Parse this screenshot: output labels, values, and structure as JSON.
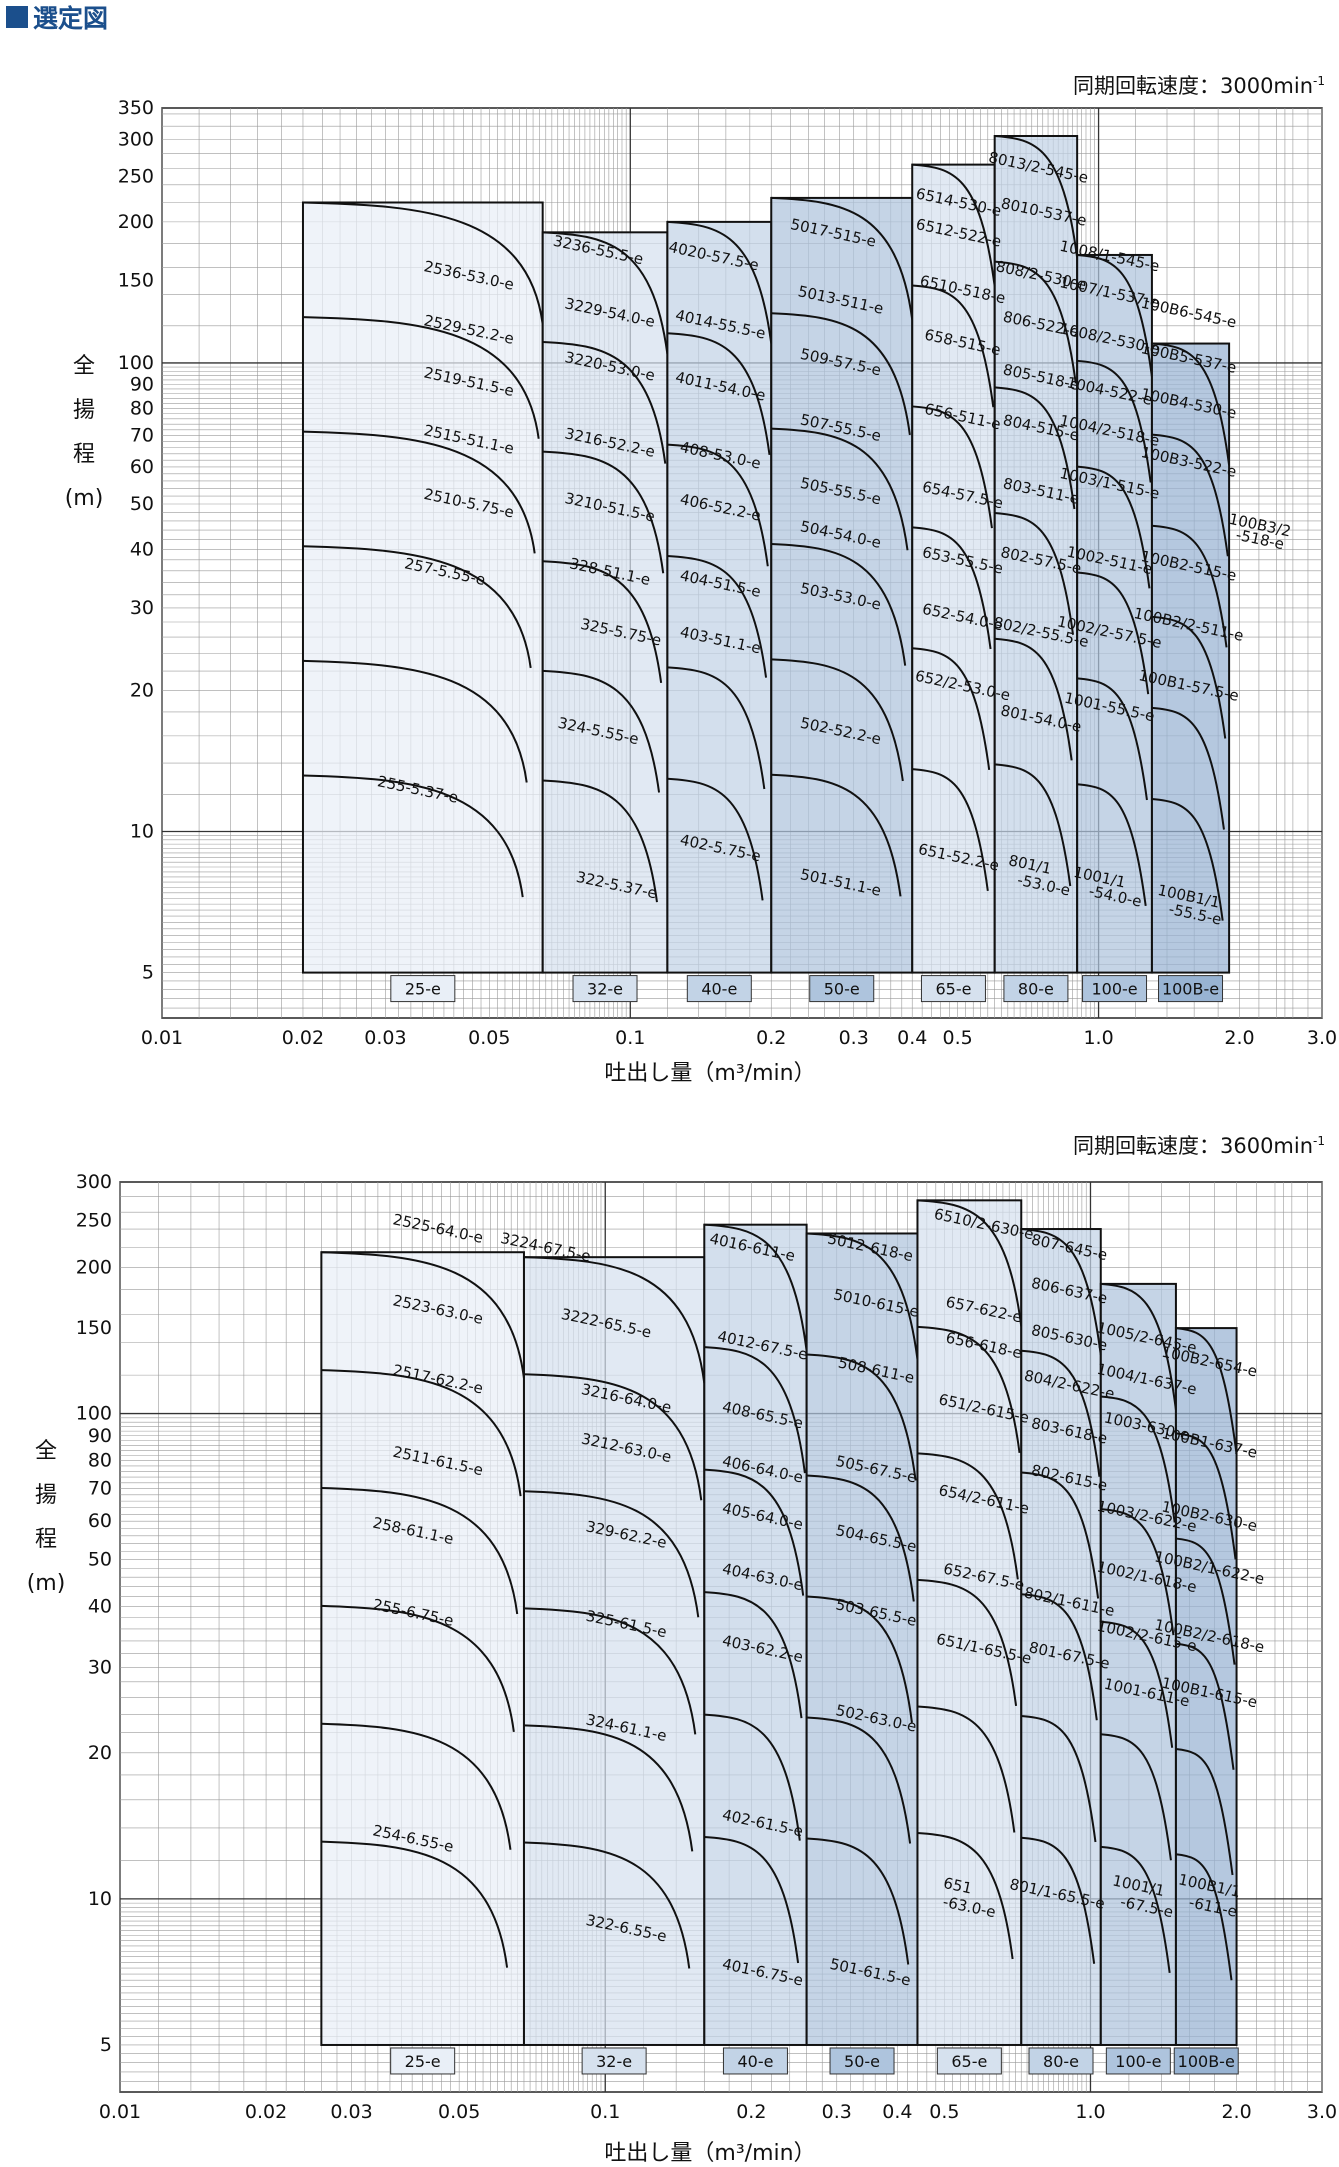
{
  "page_title": "選定図",
  "chart_data": [
    {
      "type": "area",
      "speed": "同期回転速度：3000min",
      "speed_exp": "-1",
      "ylabel": [
        "全",
        "揚",
        "程",
        "(m)"
      ],
      "xlabel": "吐出し量（m³/min）",
      "xscale": "log",
      "yscale": "log",
      "xlim": [
        0.01,
        3.0
      ],
      "ylim": [
        4,
        350
      ],
      "grid": true,
      "x_ticks": [
        0.01,
        0.02,
        0.03,
        0.05,
        0.1,
        0.2,
        0.3,
        0.4,
        0.5,
        1.0,
        2.0,
        3.0
      ],
      "x_tick_labels": [
        "0.01",
        "0.02",
        "0.03",
        "0.05",
        "0.1",
        "0.2",
        "0.3",
        "0.4",
        "0.5",
        "1.0",
        "2.0",
        "3.0"
      ],
      "y_ticks": [
        5,
        10,
        20,
        30,
        40,
        50,
        60,
        70,
        80,
        90,
        100,
        150,
        200,
        250,
        300,
        350
      ],
      "y_tick_labels": [
        "5",
        "10",
        "20",
        "30",
        "40",
        "50",
        "60",
        "70",
        "80",
        "90",
        "100",
        "150",
        "200",
        "250",
        "300",
        "350"
      ],
      "bands": [
        {
          "label": "25-e",
          "xmin": 0.02,
          "xmax": 0.065,
          "top": 220,
          "color": "#e9eff7"
        },
        {
          "label": "32-e",
          "xmin": 0.065,
          "xmax": 0.12,
          "top": 190,
          "color": "#d6e1ee"
        },
        {
          "label": "40-e",
          "xmin": 0.12,
          "xmax": 0.2,
          "top": 200,
          "color": "#c2d3e6"
        },
        {
          "label": "50-e",
          "xmin": 0.2,
          "xmax": 0.4,
          "top": 225,
          "color": "#aec4dd"
        },
        {
          "label": "65-e",
          "xmin": 0.4,
          "xmax": 0.6,
          "top": 265,
          "color": "#d6e1ee"
        },
        {
          "label": "80-e",
          "xmin": 0.6,
          "xmax": 0.9,
          "top": 305,
          "color": "#c2d3e6"
        },
        {
          "label": "100-e",
          "xmin": 0.9,
          "xmax": 1.3,
          "top": 170,
          "color": "#aec4dd"
        },
        {
          "label": "100B-e",
          "xmin": 1.3,
          "xmax": 1.9,
          "top": 110,
          "color": "#98b3d2"
        }
      ],
      "model_labels": [
        {
          "text": "2536-53.0-e",
          "x": 0.045,
          "y": 150
        },
        {
          "text": "2529-52.2-e",
          "x": 0.045,
          "y": 115
        },
        {
          "text": "2519-51.5-e",
          "x": 0.045,
          "y": 89
        },
        {
          "text": "2515-51.1-e",
          "x": 0.045,
          "y": 67
        },
        {
          "text": "2510-5.75-e",
          "x": 0.045,
          "y": 49
        },
        {
          "text": "257-5.55-e",
          "x": 0.04,
          "y": 35
        },
        {
          "text": "255-5.37-e",
          "x": 0.035,
          "y": 12
        },
        {
          "text": "3236-55.5-e",
          "x": 0.085,
          "y": 170
        },
        {
          "text": "3229-54.0-e",
          "x": 0.09,
          "y": 125
        },
        {
          "text": "3220-53.0-e",
          "x": 0.09,
          "y": 96
        },
        {
          "text": "3216-52.2-e",
          "x": 0.09,
          "y": 66
        },
        {
          "text": "3210-51.5-e",
          "x": 0.09,
          "y": 48
        },
        {
          "text": "328-51.1-e",
          "x": 0.09,
          "y": 35
        },
        {
          "text": "325-5.75-e",
          "x": 0.095,
          "y": 26
        },
        {
          "text": "324-5.55-e",
          "x": 0.085,
          "y": 16
        },
        {
          "text": "322-5.37-e",
          "x": 0.093,
          "y": 7.5
        },
        {
          "text": "4020-57.5-e",
          "x": 0.15,
          "y": 165
        },
        {
          "text": "4014-55.5-e",
          "x": 0.155,
          "y": 118
        },
        {
          "text": "4011-54.0-e",
          "x": 0.155,
          "y": 87
        },
        {
          "text": "408-53.0-e",
          "x": 0.155,
          "y": 62
        },
        {
          "text": "406-52.2-e",
          "x": 0.155,
          "y": 48
        },
        {
          "text": "404-51.5-e",
          "x": 0.155,
          "y": 33
        },
        {
          "text": "403-51.1-e",
          "x": 0.155,
          "y": 25
        },
        {
          "text": "402-5.75-e",
          "x": 0.155,
          "y": 9
        },
        {
          "text": "5017-515-e",
          "x": 0.27,
          "y": 185
        },
        {
          "text": "5013-511-e",
          "x": 0.28,
          "y": 133
        },
        {
          "text": "509-57.5-e",
          "x": 0.28,
          "y": 98
        },
        {
          "text": "507-55.5-e",
          "x": 0.28,
          "y": 71
        },
        {
          "text": "505-55.5-e",
          "x": 0.28,
          "y": 52
        },
        {
          "text": "504-54.0-e",
          "x": 0.28,
          "y": 42
        },
        {
          "text": "503-53.0-e",
          "x": 0.28,
          "y": 31
        },
        {
          "text": "502-52.2-e",
          "x": 0.28,
          "y": 16
        },
        {
          "text": "501-51.1-e",
          "x": 0.28,
          "y": 7.6
        },
        {
          "text": "6514-530-e",
          "x": 0.5,
          "y": 215
        },
        {
          "text": "6512-522-e",
          "x": 0.5,
          "y": 185
        },
        {
          "text": "6510-518-e",
          "x": 0.51,
          "y": 140
        },
        {
          "text": "658-515-e",
          "x": 0.51,
          "y": 108
        },
        {
          "text": "656-511-e",
          "x": 0.51,
          "y": 75
        },
        {
          "text": "654-57.5-e",
          "x": 0.51,
          "y": 51
        },
        {
          "text": "653-55.5-e",
          "x": 0.51,
          "y": 37
        },
        {
          "text": "652-54.0-e",
          "x": 0.51,
          "y": 28
        },
        {
          "text": "652/2-53.0-e",
          "x": 0.51,
          "y": 20
        },
        {
          "text": "651-52.2-e",
          "x": 0.5,
          "y": 8.6
        },
        {
          "text": "8013/2-545-e",
          "x": 0.74,
          "y": 255
        },
        {
          "text": "8010-537-e",
          "x": 0.76,
          "y": 205
        },
        {
          "text": "808/2-530-e",
          "x": 0.75,
          "y": 150
        },
        {
          "text": "806-522-e",
          "x": 0.75,
          "y": 118
        },
        {
          "text": "805-518-e",
          "x": 0.75,
          "y": 91
        },
        {
          "text": "804-515-e",
          "x": 0.75,
          "y": 71
        },
        {
          "text": "803-511-e",
          "x": 0.75,
          "y": 52
        },
        {
          "text": "802-57.5-e",
          "x": 0.75,
          "y": 37
        },
        {
          "text": "802/2-55.5-e",
          "x": 0.75,
          "y": 26
        },
        {
          "text": "801-54.0-e",
          "x": 0.75,
          "y": 17
        },
        {
          "text": "801/1",
          "x": 0.71,
          "y": 8.3
        },
        {
          "text": "-53.0-e",
          "x": 0.76,
          "y": 7.5
        },
        {
          "text": "1008/1-545-e",
          "x": 1.05,
          "y": 165
        },
        {
          "text": "1007/1-537-e",
          "x": 1.05,
          "y": 138
        },
        {
          "text": "1008/2-530-e",
          "x": 1.05,
          "y": 110
        },
        {
          "text": "1004-522-e",
          "x": 1.05,
          "y": 85
        },
        {
          "text": "1004/2-518-e",
          "x": 1.05,
          "y": 70
        },
        {
          "text": "1003/1-515-e",
          "x": 1.05,
          "y": 54
        },
        {
          "text": "1002-511-e",
          "x": 1.05,
          "y": 37
        },
        {
          "text": "1002/2-57.5-e",
          "x": 1.05,
          "y": 26
        },
        {
          "text": "1001-55.5-e",
          "x": 1.05,
          "y": 18
        },
        {
          "text": "1001/1",
          "x": 1.0,
          "y": 7.8
        },
        {
          "text": "-54.0-e",
          "x": 1.08,
          "y": 7.1
        },
        {
          "text": "100B6-545-e",
          "x": 1.55,
          "y": 125
        },
        {
          "text": "100B5-537-e",
          "x": 1.55,
          "y": 100
        },
        {
          "text": "100B4-530-e",
          "x": 1.55,
          "y": 80
        },
        {
          "text": "100B3-522-e",
          "x": 1.55,
          "y": 60
        },
        {
          "text": "100B2-515-e",
          "x": 1.55,
          "y": 36
        },
        {
          "text": "100B2/2-511-e",
          "x": 1.55,
          "y": 27
        },
        {
          "text": "100B1-57.5-e",
          "x": 1.55,
          "y": 20
        },
        {
          "text": "100B1/1",
          "x": 1.55,
          "y": 7.1
        },
        {
          "text": "-55.5-e",
          "x": 1.6,
          "y": 6.5
        },
        {
          "text": "100B3/2",
          "x": 2.2,
          "y": 44
        },
        {
          "text": "-518-e",
          "x": 2.2,
          "y": 41
        }
      ]
    },
    {
      "type": "area",
      "speed": "同期回転速度：3600min",
      "speed_exp": "-1",
      "ylabel": [
        "全",
        "揚",
        "程",
        "(m)"
      ],
      "xlabel": "吐出し量（m³/min）",
      "xscale": "log",
      "yscale": "log",
      "xlim": [
        0.01,
        3.0
      ],
      "ylim": [
        4,
        300
      ],
      "grid": true,
      "x_ticks": [
        0.01,
        0.02,
        0.03,
        0.05,
        0.1,
        0.2,
        0.3,
        0.4,
        0.5,
        1.0,
        2.0,
        3.0
      ],
      "x_tick_labels": [
        "0.01",
        "0.02",
        "0.03",
        "0.05",
        "0.1",
        "0.2",
        "0.3",
        "0.4",
        "0.5",
        "1.0",
        "2.0",
        "3.0"
      ],
      "y_ticks": [
        5,
        10,
        20,
        30,
        40,
        50,
        60,
        70,
        80,
        90,
        100,
        150,
        200,
        250,
        300
      ],
      "y_tick_labels": [
        "5",
        "10",
        "20",
        "30",
        "40",
        "50",
        "60",
        "70",
        "80",
        "90",
        "100",
        "150",
        "200",
        "250",
        "300"
      ],
      "bands": [
        {
          "label": "25-e",
          "xmin": 0.026,
          "xmax": 0.068,
          "top": 215,
          "color": "#e9eff7"
        },
        {
          "label": "32-e",
          "xmin": 0.068,
          "xmax": 0.16,
          "top": 210,
          "color": "#d6e1ee"
        },
        {
          "label": "40-e",
          "xmin": 0.16,
          "xmax": 0.26,
          "top": 245,
          "color": "#c2d3e6"
        },
        {
          "label": "50-e",
          "xmin": 0.26,
          "xmax": 0.44,
          "top": 235,
          "color": "#aec4dd"
        },
        {
          "label": "65-e",
          "xmin": 0.44,
          "xmax": 0.72,
          "top": 275,
          "color": "#d6e1ee"
        },
        {
          "label": "80-e",
          "xmin": 0.72,
          "xmax": 1.05,
          "top": 240,
          "color": "#c2d3e6"
        },
        {
          "label": "100-e",
          "xmin": 1.05,
          "xmax": 1.5,
          "top": 185,
          "color": "#aec4dd"
        },
        {
          "label": "100B-e",
          "xmin": 1.5,
          "xmax": 2.0,
          "top": 150,
          "color": "#98b3d2"
        }
      ],
      "model_labels": [
        {
          "text": "2525-64.0-e",
          "x": 0.045,
          "y": 235
        },
        {
          "text": "2523-63.0-e",
          "x": 0.045,
          "y": 160
        },
        {
          "text": "2517-62.2-e",
          "x": 0.045,
          "y": 115
        },
        {
          "text": "2511-61.5-e",
          "x": 0.045,
          "y": 78
        },
        {
          "text": "258-61.1-e",
          "x": 0.04,
          "y": 56
        },
        {
          "text": "255-6.75-e",
          "x": 0.04,
          "y": 38
        },
        {
          "text": "254-6.55-e",
          "x": 0.04,
          "y": 13
        },
        {
          "text": "3224-67.5-e",
          "x": 0.075,
          "y": 215
        },
        {
          "text": "3222-65.5-e",
          "x": 0.1,
          "y": 150
        },
        {
          "text": "3216-64.0-e",
          "x": 0.11,
          "y": 105
        },
        {
          "text": "3212-63.0-e",
          "x": 0.11,
          "y": 83
        },
        {
          "text": "329-62.2-e",
          "x": 0.11,
          "y": 55
        },
        {
          "text": "325-61.5-e",
          "x": 0.11,
          "y": 36
        },
        {
          "text": "324-61.1-e",
          "x": 0.11,
          "y": 22
        },
        {
          "text": "322-6.55-e",
          "x": 0.11,
          "y": 8.5
        },
        {
          "text": "4016-611-e",
          "x": 0.2,
          "y": 215
        },
        {
          "text": "4012-67.5-e",
          "x": 0.21,
          "y": 135
        },
        {
          "text": "408-65.5-e",
          "x": 0.21,
          "y": 97
        },
        {
          "text": "406-64.0-e",
          "x": 0.21,
          "y": 75
        },
        {
          "text": "405-64.0-e",
          "x": 0.21,
          "y": 60
        },
        {
          "text": "404-63.0-e",
          "x": 0.21,
          "y": 45
        },
        {
          "text": "403-62.2-e",
          "x": 0.21,
          "y": 32
        },
        {
          "text": "402-61.5-e",
          "x": 0.21,
          "y": 14
        },
        {
          "text": "401-6.75-e",
          "x": 0.21,
          "y": 6.9
        },
        {
          "text": "5012-618-e",
          "x": 0.35,
          "y": 215
        },
        {
          "text": "5010-615-e",
          "x": 0.36,
          "y": 165
        },
        {
          "text": "508-611-e",
          "x": 0.36,
          "y": 120
        },
        {
          "text": "505-67.5-e",
          "x": 0.36,
          "y": 75
        },
        {
          "text": "504-65.5-e",
          "x": 0.36,
          "y": 54
        },
        {
          "text": "503-65.5-e",
          "x": 0.36,
          "y": 38
        },
        {
          "text": "502-63.0-e",
          "x": 0.36,
          "y": 23
        },
        {
          "text": "501-61.5-e",
          "x": 0.35,
          "y": 6.9
        },
        {
          "text": "6510/2-630-e",
          "x": 0.6,
          "y": 240
        },
        {
          "text": "657-622-e",
          "x": 0.6,
          "y": 160
        },
        {
          "text": "656-618-e",
          "x": 0.6,
          "y": 135
        },
        {
          "text": "651/2-615-e",
          "x": 0.6,
          "y": 100
        },
        {
          "text": "654/2-611-e",
          "x": 0.6,
          "y": 65
        },
        {
          "text": "652-67.5-e",
          "x": 0.6,
          "y": 45
        },
        {
          "text": "651/1-65.5-e",
          "x": 0.6,
          "y": 32
        },
        {
          "text": "651",
          "x": 0.53,
          "y": 10.4
        },
        {
          "text": "-63.0-e",
          "x": 0.56,
          "y": 9.4
        },
        {
          "text": "807-645-e",
          "x": 0.9,
          "y": 215
        },
        {
          "text": "806-637-e",
          "x": 0.9,
          "y": 175
        },
        {
          "text": "805-630-e",
          "x": 0.9,
          "y": 140
        },
        {
          "text": "804/2-622-e",
          "x": 0.9,
          "y": 112
        },
        {
          "text": "803-618-e",
          "x": 0.9,
          "y": 90
        },
        {
          "text": "802-615-e",
          "x": 0.9,
          "y": 72
        },
        {
          "text": "802/1-611-e",
          "x": 0.9,
          "y": 40
        },
        {
          "text": "801-67.5-e",
          "x": 0.9,
          "y": 31
        },
        {
          "text": "801/1-65.5-e",
          "x": 0.85,
          "y": 10
        },
        {
          "text": "1005/2-645-e",
          "x": 1.3,
          "y": 140
        },
        {
          "text": "1004/1-637-e",
          "x": 1.3,
          "y": 115
        },
        {
          "text": "1003-630-e",
          "x": 1.3,
          "y": 92
        },
        {
          "text": "1003/2-622-e",
          "x": 1.3,
          "y": 60
        },
        {
          "text": "1002/1-618-e",
          "x": 1.3,
          "y": 45
        },
        {
          "text": "1002/2-615-e",
          "x": 1.3,
          "y": 34
        },
        {
          "text": "1001-611-e",
          "x": 1.3,
          "y": 26
        },
        {
          "text": "1001/1",
          "x": 1.25,
          "y": 10.4
        },
        {
          "text": "-67.5-e",
          "x": 1.3,
          "y": 9.4
        },
        {
          "text": "100B2-654-e",
          "x": 1.75,
          "y": 125
        },
        {
          "text": "100B1-637-e",
          "x": 1.75,
          "y": 85
        },
        {
          "text": "100B2-630-e",
          "x": 1.75,
          "y": 60
        },
        {
          "text": "100B2/1-622-e",
          "x": 1.75,
          "y": 47
        },
        {
          "text": "100B2/2-618-e",
          "x": 1.75,
          "y": 34
        },
        {
          "text": "100B1-615-e",
          "x": 1.75,
          "y": 26
        },
        {
          "text": "100B1/1",
          "x": 1.75,
          "y": 10.4
        },
        {
          "text": "-611-e",
          "x": 1.78,
          "y": 9.4
        }
      ]
    }
  ]
}
